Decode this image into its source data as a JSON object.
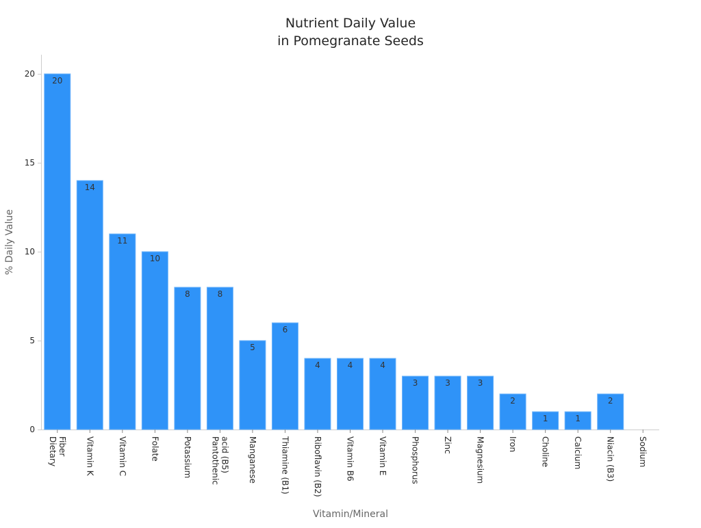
{
  "chart_data": {
    "type": "bar",
    "title": [
      "Nutrient Daily Value",
      "in Pomegranate Seeds"
    ],
    "xlabel": "Vitamin/Mineral",
    "ylabel": "% Daily Value",
    "ylim": [
      0,
      21
    ],
    "yticks": [
      0,
      5,
      10,
      15,
      20
    ],
    "grid": false,
    "bar_color": "#2f93f8",
    "categories": [
      [
        "Dietary",
        "Fiber"
      ],
      [
        "Vitamin K"
      ],
      [
        "Vitamin C"
      ],
      [
        "Folate"
      ],
      [
        "Potassium"
      ],
      [
        "Pantothenic",
        "acid (B5)"
      ],
      [
        "Manganese"
      ],
      [
        "Thiamine (B1)"
      ],
      [
        "Riboflavin (B2)"
      ],
      [
        "Vitamin B6"
      ],
      [
        "Vitamin E"
      ],
      [
        "Phosphorus"
      ],
      [
        "Zinc"
      ],
      [
        "Magnesium"
      ],
      [
        "Iron"
      ],
      [
        "Choline"
      ],
      [
        "Calcium"
      ],
      [
        "Niacin (B3)"
      ],
      [
        "Sodium"
      ]
    ],
    "values": [
      20,
      14,
      11,
      10,
      8,
      8,
      5,
      6,
      4,
      4,
      4,
      3,
      3,
      3,
      2,
      1,
      1,
      2,
      0
    ],
    "data_labels": [
      "20",
      "14",
      "11",
      "10",
      "8",
      "8",
      "5",
      "6",
      "4",
      "4",
      "4",
      "3",
      "3",
      "3",
      "2",
      "1",
      "1",
      "2",
      ""
    ]
  }
}
